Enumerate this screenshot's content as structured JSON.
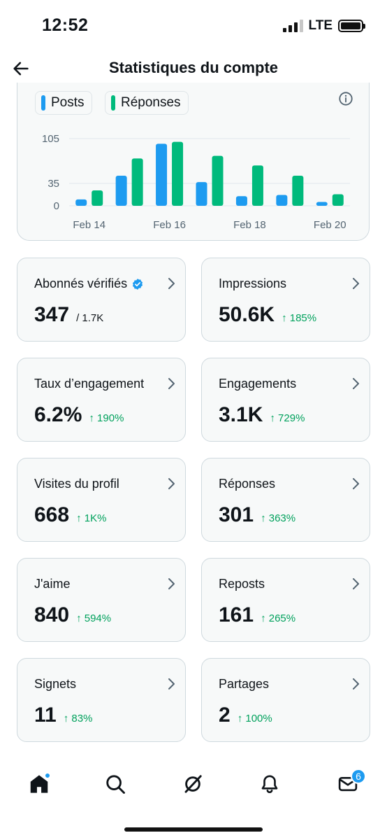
{
  "status_bar": {
    "time": "12:52",
    "network": "LTE"
  },
  "header": {
    "title": "Statistiques du compte"
  },
  "chart_data": {
    "type": "bar",
    "categories": [
      "Feb 14",
      "Feb 15",
      "Feb 16",
      "Feb 17",
      "Feb 18",
      "Feb 19",
      "Feb 20"
    ],
    "x_tick_labels": [
      "Feb 14",
      "Feb 16",
      "Feb 18",
      "Feb 20"
    ],
    "y_tick_labels": [
      "105",
      "35",
      "0"
    ],
    "y_ticks": [
      105,
      35,
      0
    ],
    "ylim": [
      0,
      105
    ],
    "series": [
      {
        "name": "Posts",
        "color": "#1d9bf0",
        "values": [
          10,
          47,
          97,
          37,
          15,
          17,
          6
        ]
      },
      {
        "name": "Réponses",
        "color": "#00ba7c",
        "values": [
          24,
          74,
          100,
          78,
          63,
          47,
          18
        ]
      }
    ],
    "legend_placement": "top-left",
    "grid": true
  },
  "cards": [
    {
      "label": "Abonnés vérifiés",
      "value": "347",
      "sub": "/ 1.7K",
      "delta": "",
      "verified": true
    },
    {
      "label": "Impressions",
      "value": "50.6K",
      "sub": "",
      "delta": "↑ 185%"
    },
    {
      "label": "Taux d’engagement",
      "value": "6.2%",
      "sub": "",
      "delta": "↑ 190%"
    },
    {
      "label": "Engagements",
      "value": "3.1K",
      "sub": "",
      "delta": "↑ 729%"
    },
    {
      "label": "Visites du profil",
      "value": "668",
      "sub": "",
      "delta": "↑ 1K%"
    },
    {
      "label": "Réponses",
      "value": "301",
      "sub": "",
      "delta": "↑ 363%"
    },
    {
      "label": "J'aime",
      "value": "840",
      "sub": "",
      "delta": "↑ 594%"
    },
    {
      "label": "Reposts",
      "value": "161",
      "sub": "",
      "delta": "↑ 265%"
    },
    {
      "label": "Signets",
      "value": "11",
      "sub": "",
      "delta": "↑ 83%"
    },
    {
      "label": "Partages",
      "value": "2",
      "sub": "",
      "delta": "↑ 100%"
    }
  ],
  "bottom_nav": {
    "items": [
      {
        "icon": "home-icon",
        "active": true
      },
      {
        "icon": "search-icon"
      },
      {
        "icon": "grok-icon"
      },
      {
        "icon": "bell-icon"
      },
      {
        "icon": "mail-icon"
      }
    ],
    "messages_badge": "6"
  },
  "colors": {
    "accent": "#1d9bf0",
    "positive": "#00ba7c",
    "delta_text": "#00a15c"
  }
}
